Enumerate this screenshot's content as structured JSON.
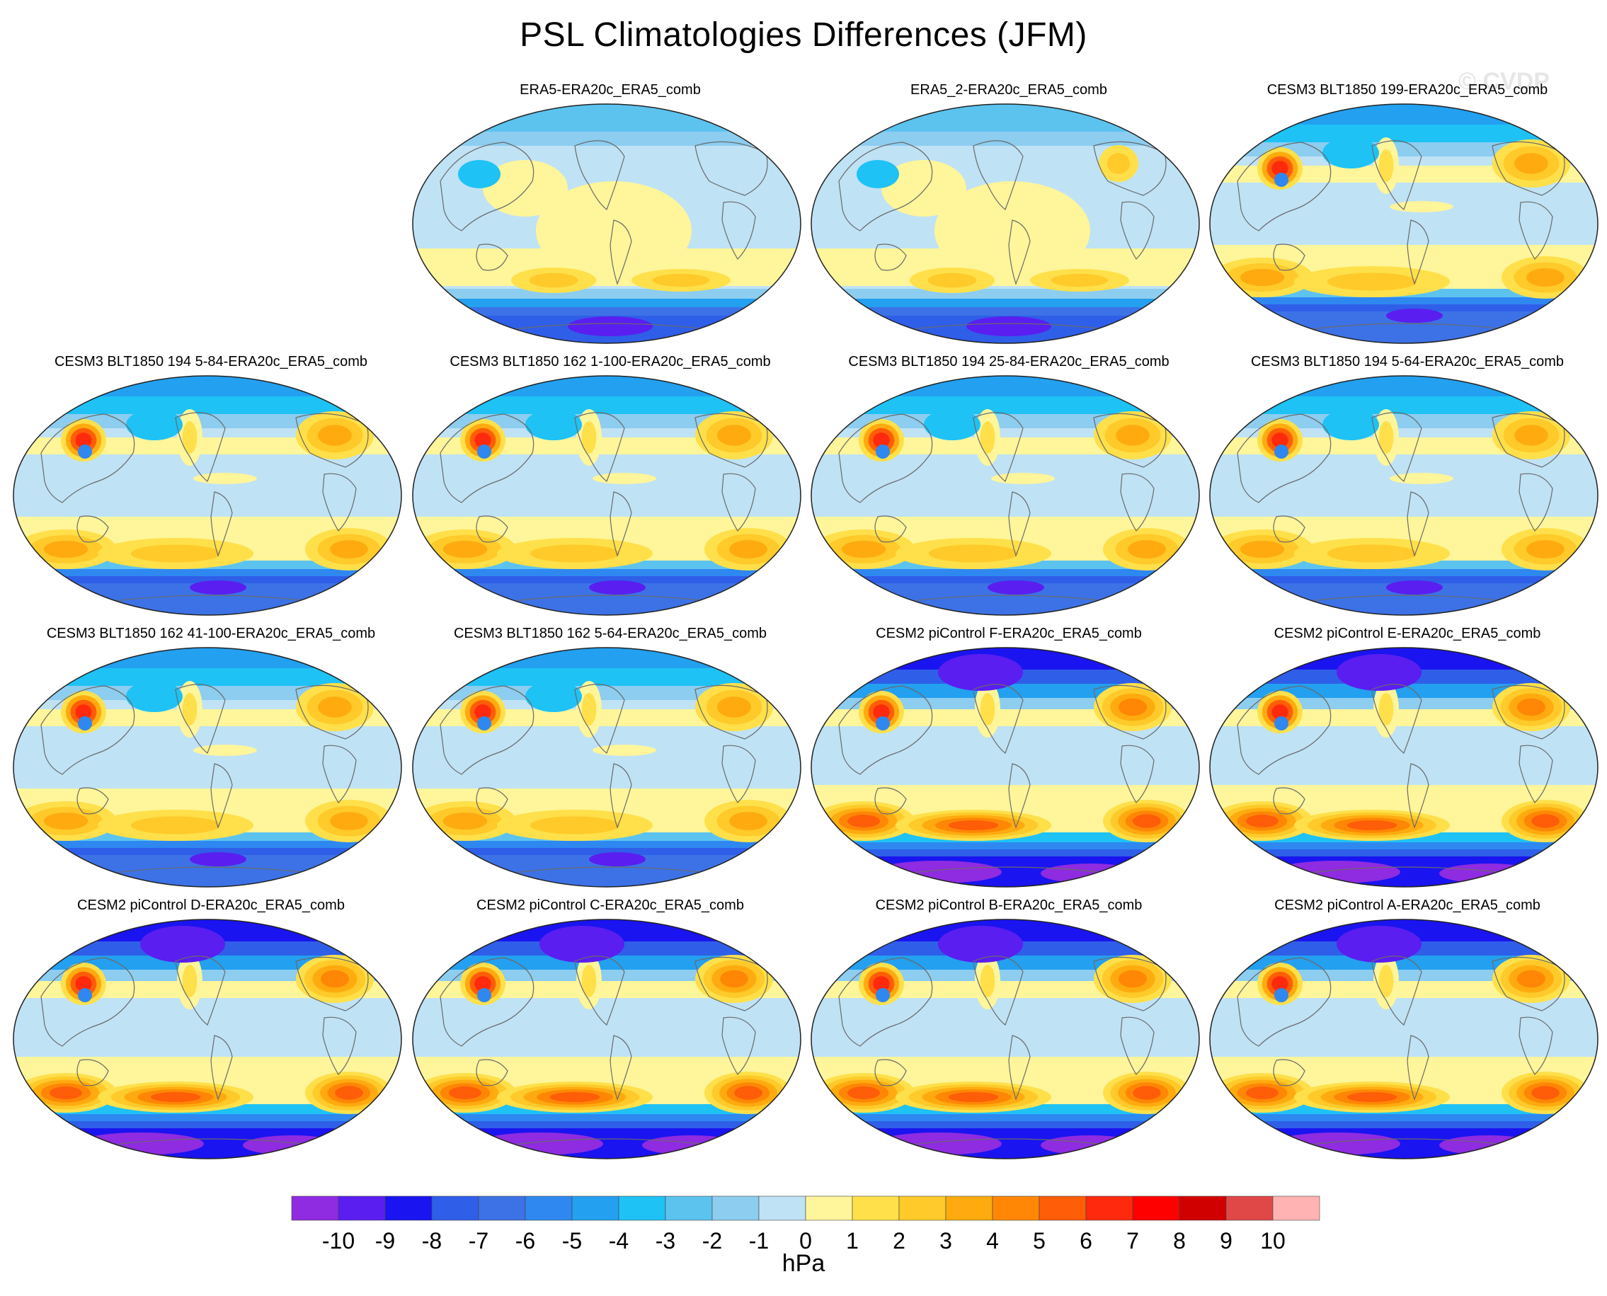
{
  "chart_data": {
    "type": "contour-map",
    "title": "PSL Climatologies Differences (JFM)",
    "watermark": "© CVDP",
    "units": "hPa",
    "colorbar": {
      "levels": [
        "-10",
        "-9",
        "-8",
        "-7",
        "-6",
        "-5",
        "-4",
        "-3",
        "-2",
        "-1",
        "0",
        "1",
        "2",
        "3",
        "4",
        "5",
        "6",
        "7",
        "8",
        "9",
        "10"
      ],
      "colors": [
        "#8f2be0",
        "#5a1ef0",
        "#1a14f0",
        "#2f5ee8",
        "#3c72e6",
        "#2e88f0",
        "#23a0f0",
        "#1ec2f5",
        "#5cc3ef",
        "#8ccdf0",
        "#bfe2f5",
        "#fff59a",
        "#ffe04a",
        "#ffca2a",
        "#ffab0f",
        "#ff8705",
        "#ff5d08",
        "#ff2a0e",
        "#ff0000",
        "#d10000",
        "#e04848",
        "#ffb3b3"
      ]
    },
    "panels": [
      {
        "title": "ERA5-ERA20c_ERA5_comb",
        "style": "obs1"
      },
      {
        "title": "ERA5_2-ERA20c_ERA5_comb",
        "style": "obs2"
      },
      {
        "title": "CESM3 BLT1850 199-ERA20c_ERA5_comb",
        "style": "cesm3"
      },
      {
        "title": "CESM3 BLT1850 194 5-84-ERA20c_ERA5_comb",
        "style": "cesm3"
      },
      {
        "title": "CESM3 BLT1850 162 1-100-ERA20c_ERA5_comb",
        "style": "cesm3"
      },
      {
        "title": "CESM3 BLT1850 194 25-84-ERA20c_ERA5_comb",
        "style": "cesm3"
      },
      {
        "title": "CESM3 BLT1850 194 5-64-ERA20c_ERA5_comb",
        "style": "cesm3"
      },
      {
        "title": "CESM3 BLT1850 162 41-100-ERA20c_ERA5_comb",
        "style": "cesm3"
      },
      {
        "title": "CESM3 BLT1850 162 5-64-ERA20c_ERA5_comb",
        "style": "cesm3"
      },
      {
        "title": "CESM2 piControl F-ERA20c_ERA5_comb",
        "style": "cesm2"
      },
      {
        "title": "CESM2 piControl E-ERA20c_ERA5_comb",
        "style": "cesm2"
      },
      {
        "title": "CESM2 piControl D-ERA20c_ERA5_comb",
        "style": "cesm2"
      },
      {
        "title": "CESM2 piControl C-ERA20c_ERA5_comb",
        "style": "cesm2"
      },
      {
        "title": "CESM2 piControl B-ERA20c_ERA5_comb",
        "style": "cesm2"
      },
      {
        "title": "CESM2 piControl A-ERA20c_ERA5_comb",
        "style": "cesm2"
      }
    ]
  }
}
